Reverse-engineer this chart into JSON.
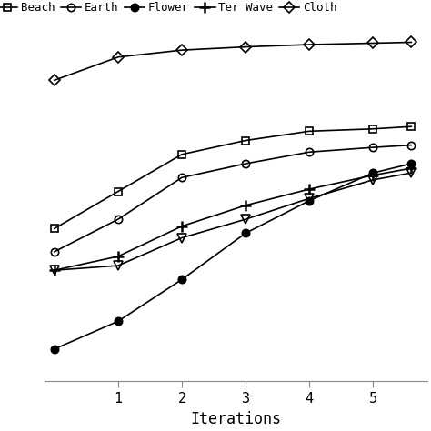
{
  "series": [
    {
      "label": "Beach",
      "marker": "s",
      "fillstyle": "none",
      "markersize": 6,
      "markeredgewidth": 1.2,
      "x": [
        0,
        1,
        2,
        3,
        4,
        5,
        5.6
      ],
      "y": [
        0.58,
        0.66,
        0.74,
        0.77,
        0.79,
        0.795,
        0.8
      ]
    },
    {
      "label": "Earth",
      "marker": "o",
      "fillstyle": "none",
      "markersize": 6,
      "markeredgewidth": 1.2,
      "x": [
        0,
        1,
        2,
        3,
        4,
        5,
        5.6
      ],
      "y": [
        0.53,
        0.6,
        0.69,
        0.72,
        0.745,
        0.755,
        0.76
      ]
    },
    {
      "label": "Flower",
      "marker": "o",
      "fillstyle": "full",
      "markersize": 6,
      "markeredgewidth": 1.2,
      "x": [
        0,
        1,
        2,
        3,
        4,
        5,
        5.6
      ],
      "y": [
        0.32,
        0.38,
        0.47,
        0.57,
        0.64,
        0.7,
        0.72
      ]
    },
    {
      "label": "Ter Wave",
      "marker": "v",
      "fillstyle": "none",
      "markersize": 7,
      "markeredgewidth": 1.2,
      "x": [
        0,
        1,
        2,
        3,
        4,
        5,
        5.6
      ],
      "y": [
        0.49,
        0.5,
        0.56,
        0.6,
        0.645,
        0.685,
        0.7
      ]
    },
    {
      "label": "Cloth",
      "marker": "D",
      "fillstyle": "none",
      "markersize": 6,
      "markeredgewidth": 1.2,
      "x": [
        0,
        1,
        2,
        3,
        4,
        5,
        5.6
      ],
      "y": [
        0.9,
        0.95,
        0.965,
        0.972,
        0.977,
        0.98,
        0.982
      ]
    }
  ],
  "plus_series": {
    "label": "Ter Wave",
    "marker": "+",
    "markersize": 9,
    "markeredgewidth": 1.8,
    "x": [
      0,
      1,
      2,
      3,
      4,
      5,
      5.6
    ],
    "y": [
      0.49,
      0.52,
      0.585,
      0.63,
      0.665,
      0.695,
      0.71
    ]
  },
  "xlabel": "Iterations",
  "xlim": [
    -0.15,
    5.85
  ],
  "ylim": [
    0.25,
    1.02
  ],
  "xticks": [
    1,
    2,
    3,
    4,
    5
  ],
  "line_color": "black",
  "background_color": "#ffffff"
}
